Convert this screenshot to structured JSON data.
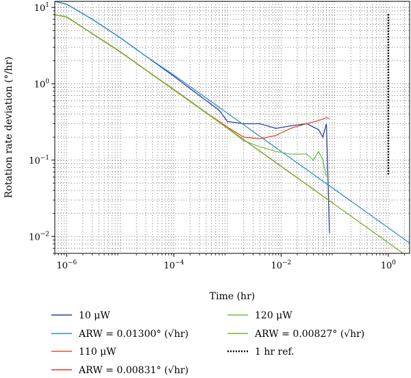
{
  "chart_data": {
    "type": "line",
    "xlabel": "Time (hr)",
    "ylabel": "Rotation rate deviation (°/hr)",
    "xscale": "log",
    "yscale": "log",
    "xlim": [
      6e-07,
      2.5
    ],
    "ylim": [
      0.006,
      12
    ],
    "xticks": [
      1e-06,
      0.0001,
      0.01,
      1
    ],
    "xtick_labels": [
      "10^-6",
      "10^-4",
      "10^-2",
      "10^0"
    ],
    "yticks": [
      0.01,
      0.1,
      1,
      10
    ],
    "ytick_labels": [
      "10^-2",
      "10^-1",
      "10^0",
      "10^1"
    ],
    "grid": true,
    "legend_placement": "bottom",
    "series": [
      {
        "name": "10 μW",
        "color": "#2a3f9a",
        "style": "solid",
        "x": [
          6e-07,
          1e-06,
          3e-06,
          1e-05,
          3e-05,
          0.0001,
          0.0003,
          0.0007,
          0.001,
          0.002,
          0.004,
          0.008,
          0.015,
          0.03,
          0.05,
          0.06,
          0.07,
          0.08
        ],
        "y": [
          12,
          11,
          7,
          4,
          2.3,
          1.25,
          0.7,
          0.45,
          0.32,
          0.3,
          0.3,
          0.26,
          0.28,
          0.3,
          0.25,
          0.2,
          0.3,
          0.011
        ]
      },
      {
        "name": "ARW = 0.01300° (√hr)",
        "color": "#2f8fd0",
        "style": "solid",
        "x": [
          6e-07,
          1e-06,
          3e-06,
          1e-05,
          3e-05,
          0.0001,
          0.001,
          0.01,
          0.1,
          1,
          2.5
        ],
        "y": [
          12,
          11,
          7,
          4,
          2.3,
          1.3,
          0.411,
          0.13,
          0.0411,
          0.013,
          0.0082
        ]
      },
      {
        "name": "110 μW",
        "color": "#e0502a",
        "style": "solid",
        "x": [
          6e-07,
          1e-06,
          1e-05,
          0.0001,
          0.0004,
          0.001,
          0.002,
          0.004,
          0.008,
          0.015,
          0.03,
          0.05,
          0.07,
          0.08
        ],
        "y": [
          8,
          7.5,
          2.6,
          0.84,
          0.42,
          0.27,
          0.2,
          0.19,
          0.21,
          0.26,
          0.3,
          0.33,
          0.36,
          0.35
        ]
      },
      {
        "name": "ARW = 0.00831° (√hr)",
        "color": "#e8302a",
        "style": "solid",
        "x": [
          6e-07,
          1e-06,
          1e-05,
          0.0001,
          0.001,
          0.01,
          0.1
        ],
        "y": [
          8,
          7.5,
          2.63,
          0.831,
          0.263,
          0.0831,
          0.0263
        ]
      },
      {
        "name": "120 μW",
        "color": "#6cc24a",
        "style": "solid",
        "x": [
          6e-07,
          1e-06,
          1e-05,
          0.0001,
          0.0004,
          0.001,
          0.002,
          0.004,
          0.008,
          0.015,
          0.03,
          0.04,
          0.05,
          0.06,
          0.07
        ],
        "y": [
          8,
          7.5,
          2.6,
          0.83,
          0.42,
          0.26,
          0.18,
          0.15,
          0.13,
          0.12,
          0.12,
          0.1,
          0.13,
          0.1,
          0.06
        ]
      },
      {
        "name": "ARW = 0.00827° (√hr)",
        "color": "#7ab02e",
        "style": "solid",
        "x": [
          6e-07,
          1e-06,
          1e-05,
          0.0001,
          0.001,
          0.01,
          0.1,
          1,
          2.5
        ],
        "y": [
          8,
          7.5,
          2.62,
          0.827,
          0.262,
          0.0827,
          0.0262,
          0.00827,
          0.0052
        ]
      },
      {
        "name": "1 hr ref.",
        "color": "#000000",
        "style": "dotted",
        "x": [
          1,
          1
        ],
        "y": [
          0.065,
          8.5
        ]
      }
    ]
  }
}
